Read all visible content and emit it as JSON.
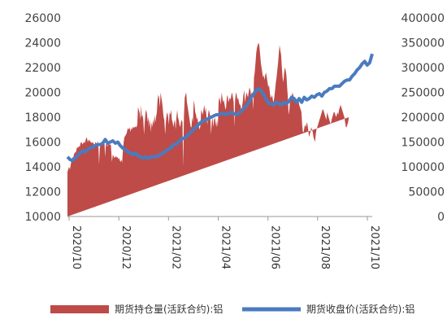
{
  "chart_data": {
    "type": "area+line",
    "x_labels": [
      "2020/10",
      "2020/12",
      "2021/02",
      "2021/04",
      "2021/06",
      "2021/08",
      "2021/10"
    ],
    "y_left": {
      "ylim": [
        10000,
        26000
      ],
      "ticks": [
        "10000",
        "12000",
        "14000",
        "16000",
        "18000",
        "20000",
        "22000",
        "24000",
        "26000"
      ]
    },
    "y_right": {
      "ylim": [
        0,
        400000
      ],
      "ticks": [
        "0",
        "50000",
        "100000",
        "150000",
        "200000",
        "250000",
        "300000",
        "350000",
        "400000"
      ]
    },
    "series": [
      {
        "name": "期货持仓量(活跃合约):铝",
        "type": "area",
        "axis": "right",
        "color": "#be4b48",
        "t": [
          0,
          0.6,
          1.0,
          1.5,
          2.0,
          2.3,
          2.6,
          3.0,
          3.3,
          3.6,
          3.9,
          4.2,
          4.6,
          4.9,
          5.2,
          5.6,
          6.0,
          6.5,
          6.9,
          7.3,
          7.7,
          8.1,
          8.5,
          8.9,
          9.3,
          9.7,
          10.1,
          10.5,
          10.8,
          11.1,
          11.4,
          11.7,
          12.0,
          12.3,
          12.6,
          12.9,
          13.2,
          13.5,
          13.8,
          14.1,
          14.4,
          14.7,
          15.0,
          15.3,
          15.6,
          15.9,
          16.2,
          16.5,
          16.9,
          17.3,
          17.7,
          18.1,
          18.5,
          18.8,
          19.1,
          19.4,
          19.7,
          20.0,
          20.3,
          20.6,
          20.9,
          21.2,
          21.5,
          21.8,
          22.1,
          22.4,
          22.7,
          23.0,
          23.3,
          23.6,
          23.9,
          24.2,
          24.5,
          24.8,
          25.1,
          25.4,
          25.7,
          26.0,
          26.3,
          26.6,
          26.9,
          27.2,
          27.5,
          27.8,
          28.1,
          28.4,
          28.7,
          29.0,
          29.3,
          29.6,
          29.9,
          30.2,
          30.5,
          30.8,
          31.1,
          31.4,
          31.7,
          32.0,
          32.3,
          32.6,
          32.9,
          33.2,
          33.5,
          33.8,
          34.1,
          34.4,
          34.7,
          35.0,
          35.3,
          35.6,
          35.9,
          36.2,
          36.5,
          36.8,
          37.1,
          37.4,
          37.7,
          38.0,
          38.3,
          38.6,
          38.9,
          39.2,
          39.5,
          39.8,
          40.1,
          40.4,
          40.7,
          41.0,
          41.3,
          41.6,
          41.9,
          42.2,
          42.5,
          42.8,
          43.1,
          43.4,
          43.7,
          44.0,
          44.3,
          44.6,
          44.9,
          45.2,
          45.5,
          45.8,
          46.1,
          46.4,
          46.7,
          47.0,
          47.3,
          47.6,
          47.9,
          48.2,
          48.5,
          48.8,
          49.1,
          49.4,
          49.7,
          50.0,
          50.3,
          50.6,
          50.9,
          51.2,
          51.5,
          51.8,
          52.1,
          52.4,
          52.7,
          53.0,
          53.3,
          53.6,
          53.9,
          54.2,
          54.5,
          54.8,
          55.1,
          55.4,
          55.7,
          56.0,
          56.3,
          56.6,
          56.9,
          57.2,
          57.5,
          57.8,
          58.1,
          58.4,
          58.7,
          59.0,
          59.3,
          59.6,
          59.9,
          60.2,
          60.5,
          60.8,
          61.1,
          61.4,
          61.7,
          62.0,
          62.3,
          62.6,
          62.9,
          63.2,
          63.5,
          63.8,
          64.1,
          64.4,
          64.7,
          65.0,
          65.3,
          65.6,
          65.9,
          66.2,
          66.5,
          66.8,
          67.1,
          67.4,
          67.7,
          68.0,
          68.3,
          68.6,
          68.9,
          69.2,
          69.5,
          69.8,
          70.1,
          70.4,
          70.7,
          71.0,
          71.3,
          71.6,
          71.9,
          72.2,
          72.5,
          72.8,
          73.1,
          73.4,
          73.7,
          74.0,
          74.3,
          74.6,
          74.9,
          75.2,
          75.5,
          75.8,
          76.1,
          76.4,
          76.7,
          77.0,
          77.3,
          77.6,
          77.9,
          78.2,
          78.5,
          78.8,
          79.1,
          79.4,
          79.7,
          80.0,
          80.3,
          80.6,
          80.9,
          81.2,
          81.5,
          81.8,
          82.1,
          82.4,
          82.7,
          83.0,
          83.3,
          83.6,
          83.9,
          84.2,
          84.5,
          84.8,
          85.1,
          85.4,
          85.7,
          86.0,
          86.3,
          86.6,
          86.9,
          87.2,
          87.5,
          87.8,
          88.1,
          88.4,
          88.7,
          89.0,
          89.3,
          89.6,
          89.9,
          90.2,
          90.5,
          90.8,
          91.1,
          91.4,
          91.7,
          92.0,
          92.3,
          92.6,
          92.9,
          93.2,
          93.5,
          93.8,
          94.1,
          94.4,
          94.7,
          95.0,
          95.3,
          95.6,
          95.9,
          96.2,
          96.5,
          96.8,
          97.1,
          97.4,
          97.7,
          98.0,
          98.3,
          98.6,
          98.9,
          99.2,
          99.5,
          99.8,
          100.1,
          100.4,
          100.7,
          101.0,
          101.3,
          101.6,
          101.9,
          102.2,
          102.5,
          102.8,
          103.1,
          103.4,
          103.7,
          104.0,
          104.3,
          104.6,
          104.9,
          105.2,
          105.5,
          105.8,
          106.1,
          106.4,
          106.7,
          107.0,
          107.3,
          107.6,
          107.9,
          108.2,
          108.5,
          108.8,
          109.1,
          109.4,
          109.7,
          110.0,
          110.3,
          110.6,
          110.9,
          111.2,
          111.5,
          111.8,
          112.1,
          112.4,
          112.7,
          113.0,
          113.3,
          113.6,
          113.9,
          114.2,
          114.5,
          114.8,
          115.1,
          115.4,
          115.7,
          116.0,
          116.3,
          116.6,
          116.9,
          117.2,
          117.5,
          117.8,
          118.1,
          118.4,
          118.7,
          119.0,
          119.3,
          119.6,
          119.9,
          120.2,
          120.5,
          120.8,
          121.1,
          121.4
        ],
        "v": [
          90000,
          100000,
          95000,
          110000,
          120000,
          118000,
          125000,
          130000,
          128000,
          135000,
          140000,
          138000,
          142000,
          140000,
          148000,
          150000,
          145000,
          150000,
          148000,
          155000,
          160000,
          150000,
          155000,
          152000,
          150000,
          148000,
          150000,
          146000,
          144000,
          150000,
          148000,
          145000,
          152000,
          145000,
          105000,
          138000,
          145000,
          150000,
          148000,
          152000,
          150000,
          155000,
          120000,
          145000,
          148000,
          140000,
          150000,
          145000,
          145000,
          145000,
          110000,
          125000,
          120000,
          118000,
          120000,
          122000,
          118000,
          120000,
          115000,
          118000,
          112000,
          110000,
          115000,
          108000,
          135000,
          150000,
          160000,
          162000,
          165000,
          168000,
          175000,
          178000,
          175000,
          180000,
          170000,
          178000,
          175000,
          180000,
          180000,
          178000,
          182000,
          180000,
          180000,
          185000,
          220000,
          215000,
          210000,
          195000,
          225000,
          200000,
          205000,
          195000,
          165000,
          190000,
          210000,
          215000,
          205000,
          190000,
          200000,
          180000,
          195000,
          170000,
          190000,
          180000,
          195000,
          185000,
          205000,
          190000,
          200000,
          210000,
          235000,
          245000,
          240000,
          220000,
          250000,
          240000,
          230000,
          215000,
          200000,
          195000,
          165000,
          190000,
          205000,
          210000,
          200000,
          185000,
          210000,
          205000,
          215000,
          195000,
          190000,
          180000,
          190000,
          195000,
          175000,
          200000,
          215000,
          200000,
          195000,
          185000,
          180000,
          190000,
          195000,
          190000,
          100000,
          200000,
          240000,
          245000,
          250000,
          230000,
          220000,
          210000,
          200000,
          190000,
          180000,
          180000,
          200000,
          190000,
          235000,
          225000,
          210000,
          205000,
          195000,
          200000,
          185000,
          180000,
          175000,
          185000,
          215000,
          210000,
          205000,
          215000,
          225000,
          210000,
          220000,
          200000,
          185000,
          205000,
          215000,
          210000,
          200000,
          165000,
          190000,
          200000,
          180000,
          195000,
          200000,
          190000,
          180000,
          195000,
          180000,
          230000,
          240000,
          235000,
          225000,
          250000,
          240000,
          230000,
          235000,
          225000,
          215000,
          220000,
          240000,
          245000,
          230000,
          235000,
          240000,
          235000,
          245000,
          250000,
          240000,
          230000,
          180000,
          235000,
          250000,
          245000,
          235000,
          240000,
          230000,
          225000,
          225000,
          215000,
          220000,
          230000,
          245000,
          255000,
          230000,
          240000,
          250000,
          245000,
          240000,
          250000,
          260000,
          255000,
          245000,
          250000,
          240000,
          215000,
          280000,
          290000,
          310000,
          330000,
          340000,
          345000,
          350000,
          345000,
          330000,
          310000,
          300000,
          290000,
          280000,
          285000,
          275000,
          285000,
          290000,
          280000,
          270000,
          260000,
          265000,
          250000,
          240000,
          240000,
          245000,
          235000,
          230000,
          240000,
          255000,
          270000,
          280000,
          295000,
          310000,
          330000,
          345000,
          335000,
          325000,
          300000,
          280000,
          270000,
          290000,
          300000,
          295000,
          285000,
          260000,
          240000,
          205000,
          215000,
          240000,
          245000,
          240000,
          250000,
          245000,
          240000,
          240000,
          235000,
          235000,
          230000,
          235000,
          235000,
          225000,
          220000,
          215000,
          210000,
          185000,
          170000,
          170000,
          180000,
          185000,
          180000,
          190000,
          185000,
          175000,
          160000,
          165000,
          170000,
          180000,
          175000,
          170000,
          160000,
          155000,
          150000,
          165000,
          175000,
          180000,
          185000,
          190000,
          195000,
          200000,
          205000,
          210000,
          215000,
          215000,
          210000,
          205000,
          200000,
          195000,
          210000,
          205000,
          200000,
          195000,
          190000,
          185000,
          195000,
          200000,
          205000,
          210000,
          210000,
          205000,
          200000,
          205000,
          210000,
          205000,
          215000,
          220000,
          225000,
          220000,
          215000,
          210000,
          205000,
          200000,
          190000,
          180000,
          180000,
          185000,
          190000,
          200000
        ]
      },
      {
        "name": "期货收盘价(活跃合约):铝",
        "type": "line",
        "axis": "left",
        "color": "#4a7bbf",
        "t": [
          0,
          1,
          2,
          3,
          4,
          5,
          6,
          7,
          8,
          9,
          10,
          11,
          12,
          13,
          14,
          15,
          16,
          17,
          18,
          19,
          20,
          21,
          22,
          23,
          24,
          25,
          26,
          27,
          28,
          29,
          30,
          31,
          32,
          33,
          34,
          35,
          36,
          37,
          38,
          39,
          40,
          41,
          42,
          43,
          44,
          45,
          46,
          47,
          48,
          49,
          50,
          51,
          52,
          53,
          54,
          55,
          56,
          57,
          58,
          59,
          60,
          61,
          62,
          63,
          64,
          65,
          66,
          67,
          68,
          69,
          70,
          71,
          72,
          73,
          74,
          75,
          76,
          77,
          78,
          79,
          80,
          81,
          82,
          83,
          84,
          85,
          86,
          87,
          88,
          89,
          90,
          91,
          92,
          93,
          94,
          95,
          96,
          97,
          98,
          99,
          100,
          101,
          102,
          103,
          104,
          105,
          106,
          107,
          108,
          109,
          110,
          111,
          112,
          113,
          114,
          115,
          116,
          117,
          118,
          119,
          120,
          121
        ],
        "v": [
          14800,
          14600,
          14500,
          14700,
          14900,
          15100,
          15300,
          15200,
          15400,
          15500,
          15600,
          15700,
          15800,
          15800,
          15900,
          16200,
          15900,
          16000,
          16100,
          15900,
          16000,
          15700,
          15500,
          15400,
          15200,
          15100,
          15000,
          15100,
          14900,
          14800,
          14700,
          14800,
          14700,
          14800,
          14800,
          14800,
          14900,
          15000,
          15100,
          15300,
          15400,
          15500,
          15800,
          15800,
          16000,
          16200,
          16300,
          16400,
          16600,
          16800,
          17000,
          17200,
          17400,
          17600,
          17700,
          17800,
          17900,
          18000,
          18100,
          18200,
          18200,
          18300,
          18300,
          18200,
          18300,
          18400,
          18300,
          18200,
          18300,
          18500,
          18700,
          18900,
          19200,
          19600,
          19900,
          20200,
          20300,
          20100,
          19800,
          19400,
          19100,
          19100,
          19000,
          19200,
          19100,
          19000,
          19200,
          19100,
          19300,
          19600,
          19500,
          19200,
          19500,
          19200,
          19600,
          19400,
          19500,
          19700,
          19600,
          19800,
          19900,
          19700,
          20000,
          20100,
          20300,
          20300,
          20500,
          20500,
          20500,
          20700,
          20900,
          21000,
          21000,
          21300,
          21500,
          21800,
          22000,
          22300,
          22500,
          22200,
          22400,
          23100
        ]
      }
    ]
  },
  "legend": {
    "area_label": "期货持仓量(活跃合约):铝",
    "line_label": "期货收盘价(活跃合约):铝"
  }
}
